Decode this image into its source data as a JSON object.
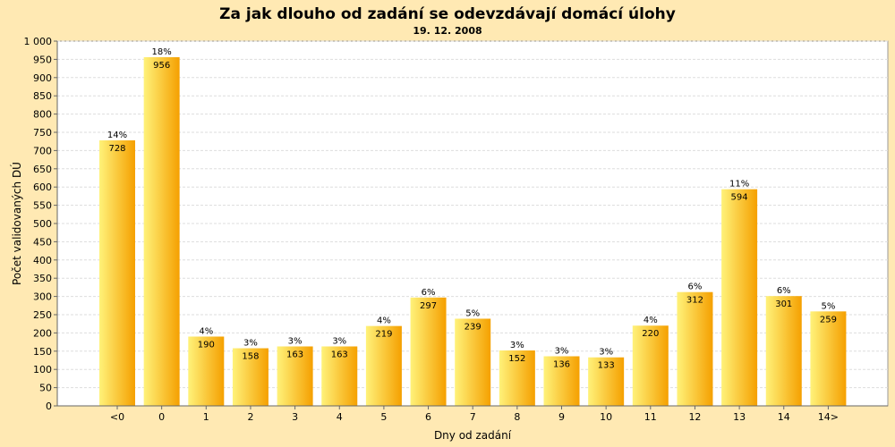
{
  "chart_data": {
    "type": "bar",
    "title": "Za jak dlouho od zadání se odevzdávají domácí úlohy",
    "subtitle": "19. 12. 2008",
    "xlabel": "Dny od zadání",
    "ylabel": "Počet validovaných DÚ",
    "categories": [
      "<0",
      "0",
      "1",
      "2",
      "3",
      "4",
      "5",
      "6",
      "7",
      "8",
      "9",
      "10",
      "11",
      "12",
      "13",
      "14",
      "14>"
    ],
    "values": [
      728,
      956,
      190,
      158,
      163,
      163,
      219,
      297,
      239,
      152,
      136,
      133,
      220,
      312,
      594,
      301,
      259
    ],
    "percent_labels": [
      "14%",
      "18%",
      "4%",
      "3%",
      "3%",
      "3%",
      "4%",
      "6%",
      "5%",
      "3%",
      "3%",
      "3%",
      "4%",
      "6%",
      "11%",
      "6%",
      "5%"
    ],
    "ylim": [
      0,
      1000
    ],
    "yticks": [
      0,
      50,
      100,
      150,
      200,
      250,
      300,
      350,
      400,
      450,
      500,
      550,
      600,
      650,
      700,
      750,
      800,
      850,
      900,
      950,
      1000
    ],
    "ytick_labels": [
      "0",
      "50",
      "100",
      "150",
      "200",
      "250",
      "300",
      "350",
      "400",
      "450",
      "500",
      "550",
      "600",
      "650",
      "700",
      "750",
      "800",
      "850",
      "900",
      "950",
      "1 000"
    ],
    "grid": true,
    "colors": {
      "background": "#ffe9b3",
      "plot_background": "#ffffff",
      "grid": "#dddddd",
      "bar_light": "#fff27a",
      "bar_dark": "#f5a000"
    }
  }
}
